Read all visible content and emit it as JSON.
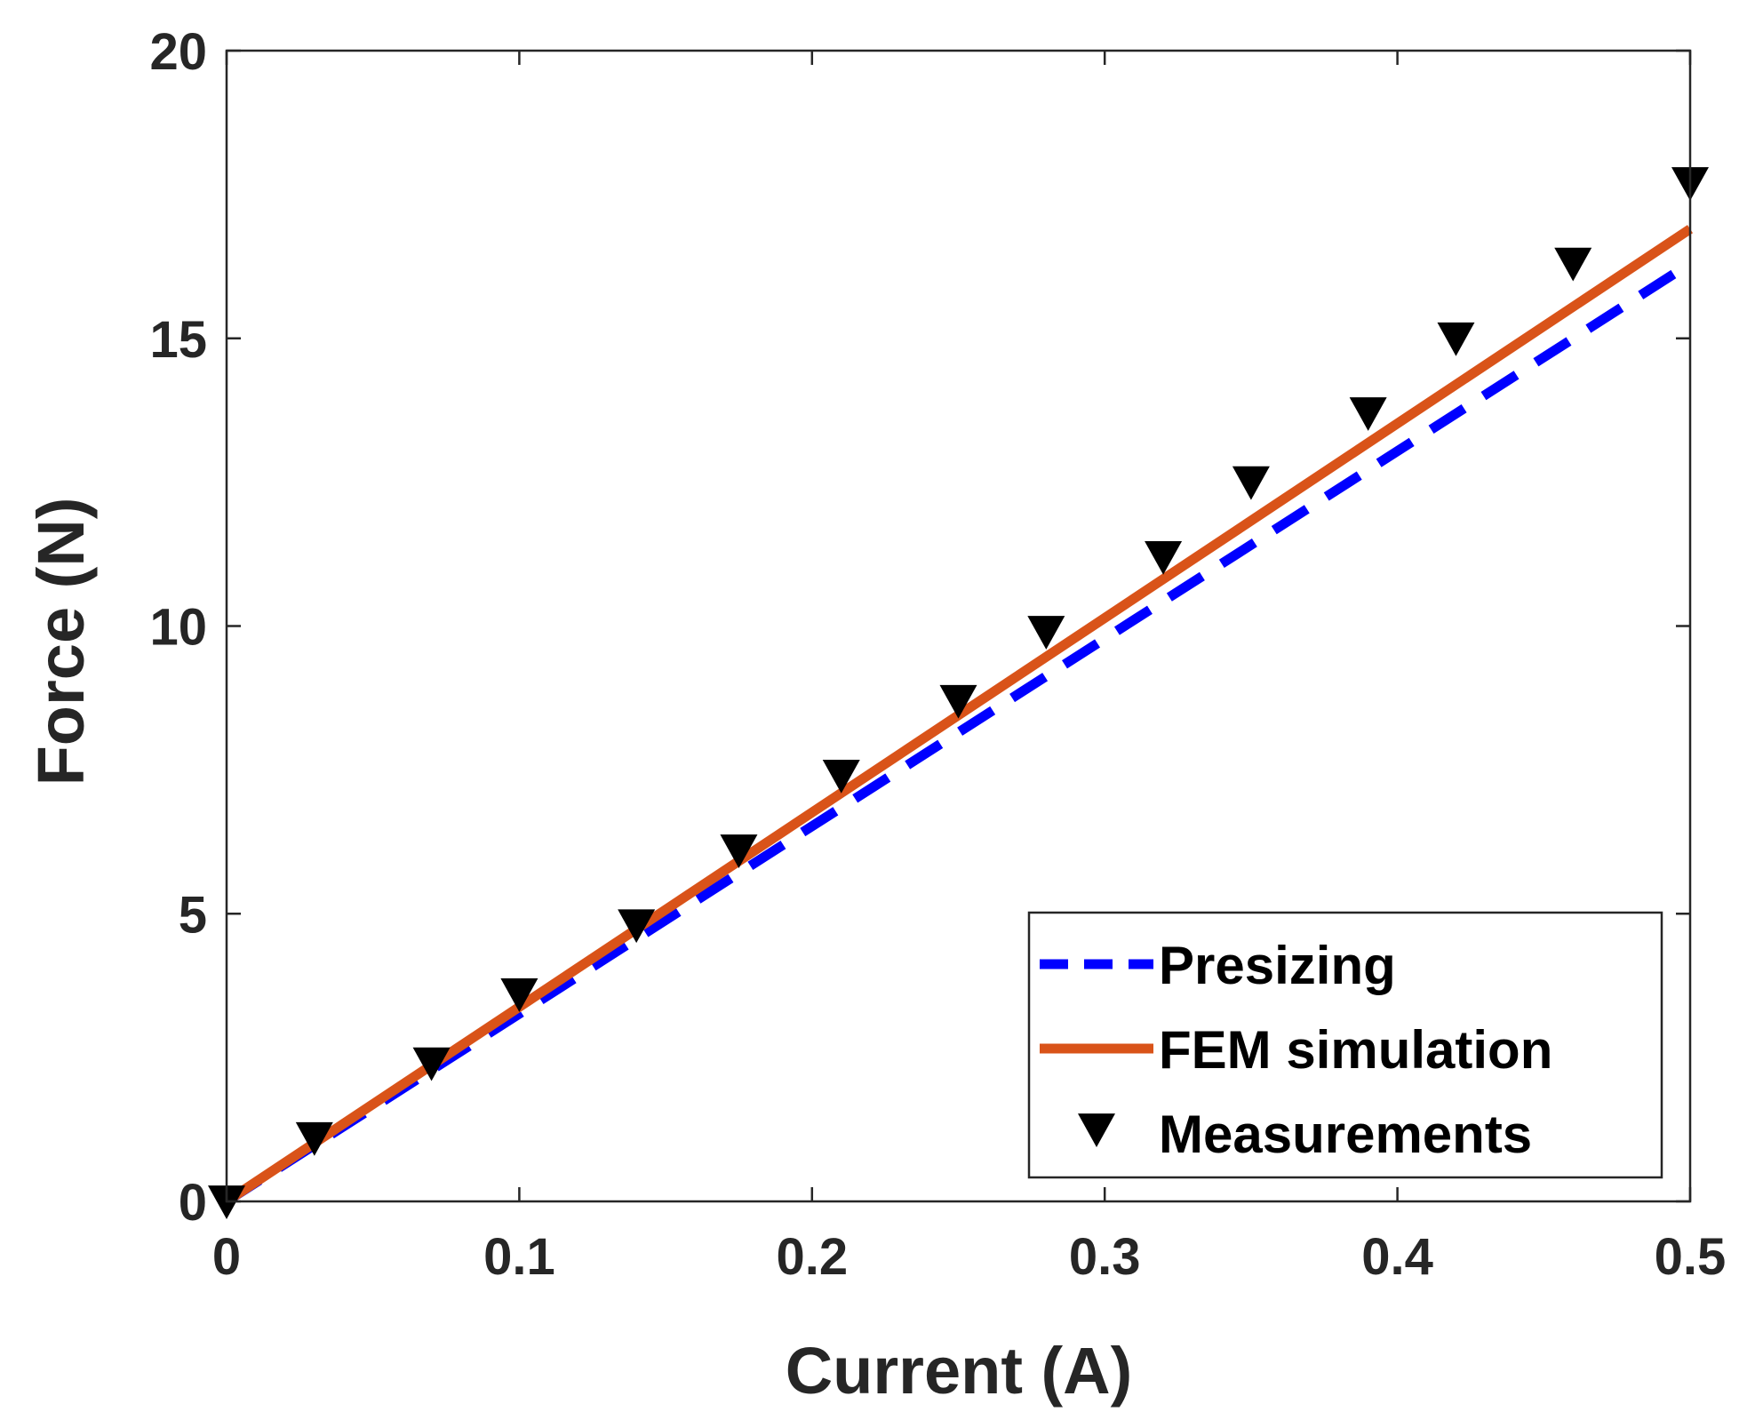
{
  "chart_data": {
    "type": "line",
    "title": "",
    "xlabel": "Current  (A)",
    "ylabel": "Force (N)",
    "xlim": [
      0,
      0.5
    ],
    "ylim": [
      0,
      20
    ],
    "x_ticks": [
      0,
      0.1,
      0.2,
      0.3,
      0.4,
      0.5
    ],
    "x_tick_labels": [
      "0",
      "0.1",
      "0.2",
      "0.3",
      "0.4",
      "0.5"
    ],
    "y_ticks": [
      0,
      5,
      10,
      15,
      20
    ],
    "y_tick_labels": [
      "0",
      "5",
      "10",
      "15",
      "20"
    ],
    "grid": false,
    "legend_position": "bottom-right",
    "series": [
      {
        "name": "Presizing",
        "style": "dashed-line",
        "color": "#0000ff",
        "x": [
          0,
          0.5
        ],
        "y": [
          0,
          16.3
        ]
      },
      {
        "name": "FEM simulation",
        "style": "solid-line",
        "color": "#d95319",
        "x": [
          0,
          0.5
        ],
        "y": [
          0,
          16.9
        ]
      },
      {
        "name": "Measurements",
        "style": "marker-triangle-down",
        "color": "#000000",
        "x": [
          0,
          0.03,
          0.07,
          0.1,
          0.14,
          0.175,
          0.21,
          0.25,
          0.28,
          0.32,
          0.35,
          0.39,
          0.42,
          0.46,
          0.5
        ],
        "y": [
          0,
          1.1,
          2.4,
          3.6,
          4.8,
          6.1,
          7.4,
          8.7,
          9.9,
          11.2,
          12.5,
          13.7,
          15.0,
          16.3,
          17.7
        ]
      }
    ]
  }
}
